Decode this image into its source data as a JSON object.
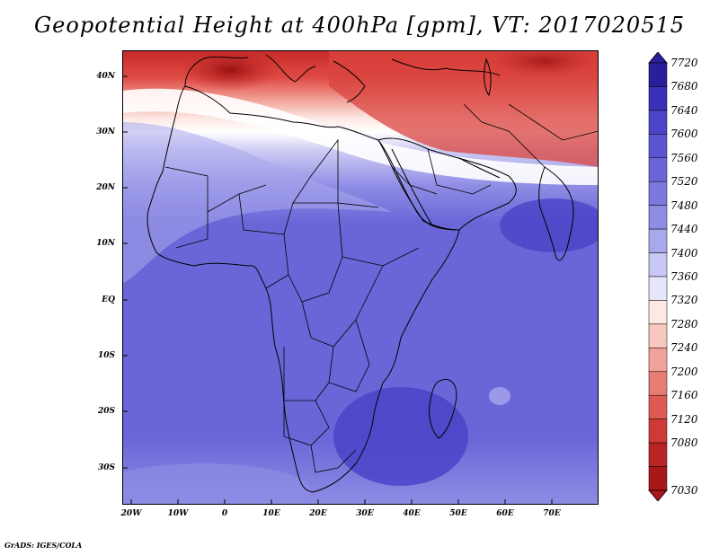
{
  "title": "Geopotential Height at 400hPa [gpm], VT: 2017020515",
  "credit": "GrADS: IGES/COLA",
  "map": {
    "lat_labels": [
      "40N",
      "30N",
      "20N",
      "10N",
      "EQ",
      "10S",
      "20S",
      "30S"
    ],
    "lon_labels": [
      "20W",
      "10W",
      "0",
      "10E",
      "20E",
      "30E",
      "40E",
      "50E",
      "60E",
      "70E"
    ]
  },
  "colorbar": {
    "levels": [
      "7720",
      "7680",
      "7640",
      "7600",
      "7560",
      "7520",
      "7480",
      "7440",
      "7400",
      "7360",
      "7320",
      "7280",
      "7240",
      "7200",
      "7160",
      "7120",
      "7080",
      "7030"
    ],
    "colors": [
      "#2a1e9a",
      "#3b30b8",
      "#4a44c8",
      "#5a56d2",
      "#6a66d8",
      "#7b78de",
      "#8e8ce4",
      "#a9a8ec",
      "#c9c8f4",
      "#e6e6fa",
      "#fde8e4",
      "#f8c8c0",
      "#f1a29a",
      "#e87c74",
      "#de5a54",
      "#cf3a36",
      "#bb2424",
      "#a81818"
    ]
  },
  "field_colors": {
    "deep_red": "#b01c1c",
    "red": "#e04a44",
    "light_red": "#f2a29a",
    "white": "#ffffff",
    "light_blue": "#cfcdf4",
    "blue": "#6a66d8",
    "dark_blue": "#4a44c8"
  }
}
